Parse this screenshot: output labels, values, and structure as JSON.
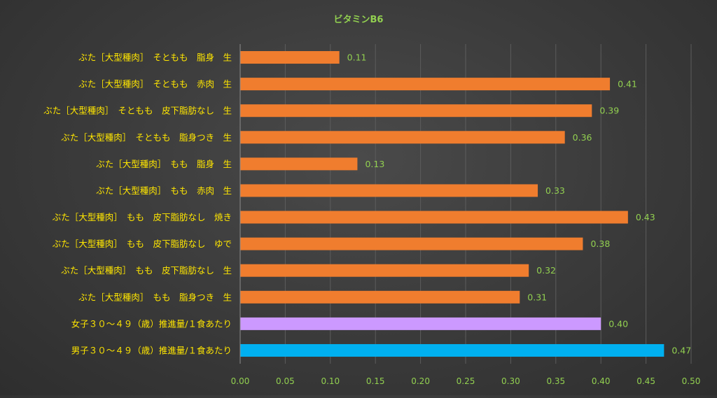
{
  "chart_data": {
    "type": "bar",
    "orientation": "horizontal",
    "title": "ビタミンB6",
    "categories": [
      "ぶた［大型種肉］　そともも　脂身　生",
      "ぶた［大型種肉］　そともも　赤肉　生",
      "ぶた［大型種肉］　そともも　皮下脂肪なし　生",
      "ぶた［大型種肉］　そともも　脂身つき　生",
      "ぶた［大型種肉］　もも　脂身　生",
      "ぶた［大型種肉］　もも　赤肉　生",
      "ぶた［大型種肉］　もも　皮下脂肪なし　焼き",
      "ぶた［大型種肉］　もも　皮下脂肪なし　ゆで",
      "ぶた［大型種肉］　もも　皮下脂肪なし　生",
      "ぶた［大型種肉］　もも　脂身つき　生",
      "女子３０～４９（歳）推進量/１食あたり",
      "男子３０～４９（歳）推進量/１食あたり"
    ],
    "values": [
      0.11,
      0.41,
      0.39,
      0.36,
      0.13,
      0.33,
      0.43,
      0.38,
      0.32,
      0.31,
      0.4,
      0.47
    ],
    "value_labels": [
      "0.11",
      "0.41",
      "0.39",
      "0.36",
      "0.13",
      "0.33",
      "0.43",
      "0.38",
      "0.32",
      "0.31",
      "0.40",
      "0.47"
    ],
    "xlim": [
      0,
      0.5
    ],
    "xticks": [
      "0.00",
      "0.05",
      "0.10",
      "0.15",
      "0.20",
      "0.25",
      "0.30",
      "0.35",
      "0.40",
      "0.45",
      "0.50"
    ],
    "xtick_values": [
      0,
      0.05,
      0.1,
      0.15,
      0.2,
      0.25,
      0.3,
      0.35,
      0.4,
      0.45,
      0.5
    ],
    "xlabel": "",
    "ylabel": "",
    "grid": "vertical",
    "legend": "none",
    "colors": {
      "default_bar": "#f07d2e",
      "female_bar": "#cc99ff",
      "male_bar": "#00b0f0",
      "category_text": "#ffe600",
      "value_text": "#92d050",
      "tick_text": "#92d050",
      "title_text": "#92d050",
      "gridline": "#5c5c5c",
      "axis_line": "#8c8c8c"
    },
    "bar_colors": [
      "default_bar",
      "default_bar",
      "default_bar",
      "default_bar",
      "default_bar",
      "default_bar",
      "default_bar",
      "default_bar",
      "default_bar",
      "default_bar",
      "female_bar",
      "male_bar"
    ]
  }
}
